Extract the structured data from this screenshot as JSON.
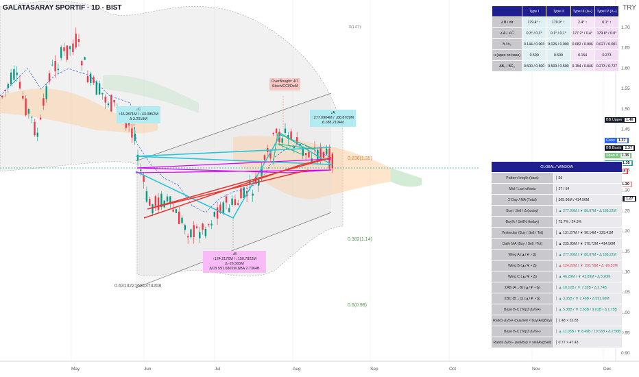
{
  "header": {
    "title": "GALATASARAY SPORTIF · 1D · BIST",
    "currency": "TRY"
  },
  "price_axis": {
    "ticks": [
      "1.70",
      "1.65",
      "1.60",
      "1.55",
      "1.50",
      "1.45",
      "1.40",
      "1.35",
      "1.30",
      "1.25",
      "1.20",
      "1.15",
      "1.10",
      "1.05",
      "1.00",
      "0.95",
      "0.90"
    ]
  },
  "time_axis": {
    "ticks": [
      "May",
      "Jun",
      "Jul",
      "Aug",
      "Sep",
      "Oct",
      "Nov",
      "Dec"
    ]
  },
  "fib": {
    "f0": "0(1.67)",
    "f236": "0.236(1.35)",
    "f382": "0.382(1.14)",
    "f5": "0.5(0.98)",
    "side": "0.6313221681374208"
  },
  "annotations": {
    "c": [
      "↓C",
      "↑46.2871M / ↓43.0852M",
      "Δ 3.2019M"
    ],
    "a": [
      "↓A",
      "↑277.0904M / ↓88.8709M",
      "Δ 188.2194M"
    ],
    "b": [
      "↓B",
      "↑124.2172M / ↓150.7822M",
      "Δ -26.565M",
      "ΔCB 591.6802M   ΔBA 2.7364B"
    ],
    "ob": [
      "OverBought: 4/7",
      "Stoch/CCI/DeM"
    ]
  },
  "badges": [
    {
      "text": "BB:Upper",
      "value": "1.46",
      "bg": "#131722"
    },
    {
      "text": "Conv",
      "value": "1.37",
      "bg": "#2962ff"
    },
    {
      "text": "BB:Basis",
      "value": "1.37",
      "bg": "#131722"
    },
    {
      "text": "Span A",
      "value": "1.35",
      "bg": "#81c784"
    },
    {
      "text": "GSRAY",
      "value": "1.35",
      "bg": "#26a69a"
    },
    {
      "text": "Base",
      "value": "1.34",
      "bg": "#f23645"
    },
    {
      "text": "Span B",
      "value": "1.30",
      "bg": "#ef9a9a"
    },
    {
      "text": "BB:Lower",
      "value": "1.27",
      "bg": "#131722"
    }
  ],
  "type_table": {
    "headers": [
      "",
      "Type I",
      "Type II",
      "Type III (Δ+)",
      "Type IV (Δ−)"
    ],
    "rows": [
      [
        "∠B / dir",
        "179.4° ↑",
        "179.9° ↑",
        "2.4° ↑",
        "0.1° ↑"
      ],
      [
        "∠A / ∠C",
        "0.3° / 0.3°",
        "0.1° / 0.1°",
        "177.2° / 0.4°",
        "179.8° / 0.0°"
      ],
      [
        "ĥ / h₀",
        "0.144 / 0.003",
        "0.026 / 0.000",
        "0.082 / 0.006",
        "0.027 / 0.001"
      ],
      [
        "u (apex on base)",
        "0.500",
        "0.500",
        "0.154",
        "0.273"
      ],
      [
        "AB₀ / BC₀",
        "0.500 / 0.500",
        "0.500 / 0.500",
        "0.154 / 0.846",
        "0.273 / 0.727"
      ]
    ]
  },
  "global_table": {
    "title": "GLOBAL / WINDOW",
    "rows": [
      {
        "label": "Pattern length (bars)",
        "value": "│ 55",
        "cls": ""
      },
      {
        "label": "Mid / Last offsets",
        "value": "│ 27 / 54",
        "cls": ""
      },
      {
        "label": "Σ Day / MA (Total)",
        "value": "│ 365.96M / 414.56M",
        "cls": ""
      },
      {
        "label": "Buy / Sell / Δ (today)",
        "value": "│ ▲ 277.09M / ▼ 88.87M • Δ 188.22M",
        "cls": "g"
      },
      {
        "label": "Buy% / Sell% (today)",
        "value": "│ 75.7% / 24.3%",
        "cls": ""
      },
      {
        "label": "Yesterday (Buy / Sell / Tot)",
        "value": "│ ▲ 131.27M / ▼ 98.14M • 229.41M",
        "cls": ""
      },
      {
        "label": "Daily MA (Buy / Sell / Tot)",
        "value": "│ ▲ 235.85M / ▼ 178.72M • 414.56M",
        "cls": ""
      },
      {
        "label": "Wing A (▲/▼ • Δ)",
        "value": "│ ▲ 277.09M / ▼ 88.87M • Δ 188.22M",
        "cls": "g"
      },
      {
        "label": "Wing B (▲/▼ • Δ)",
        "value": "│ ▲ 124.22M / ▼ 150.78M • Δ -26.57M",
        "cls": "r"
      },
      {
        "label": "Wing C (▲/▼ • Δ)",
        "value": "│ ▲ 46.29M / ▼ 43.09M • Δ 3.20M",
        "cls": "g"
      },
      {
        "label": "ΣAB (A→B) (▲/▼ • Δ)",
        "value": "│ ▲ 10.12B / ▼ 7.39B • Δ 2.74B",
        "cls": "g"
      },
      {
        "label": "ΣBC (B→C) (▲/▼ • Δ)",
        "value": "│ ▲ 3.05B / ▼ 2.46B • Δ 591.68M",
        "cls": "g"
      },
      {
        "label": "Base B-C (Top3 ΔVol+)",
        "value": "│ ▲ 5.38B / ▼ 3.63B / 9.01B • Δ 1.75B",
        "cls": "g"
      },
      {
        "label": "Ratios ΔVol+ (buy/sell × buy/AvgBuy)",
        "value": "│ 1.48 × 22.83",
        "cls": ""
      },
      {
        "label": "Base B-C (Top3 ΔVol−)",
        "value": "│ ▲ 11.05B / ▼ 8.49B / 19.53B • Δ 2.56B",
        "cls": "g"
      },
      {
        "label": "Ratios ΔVol− (sell/buy × sell/AvgSell)",
        "value": "│ 0.77 × 47.43",
        "cls": ""
      }
    ]
  }
}
